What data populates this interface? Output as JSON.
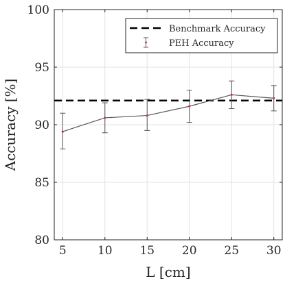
{
  "chart_data": {
    "type": "line",
    "title": "",
    "xlabel": "L [cm]",
    "ylabel": "Accuracy [%]",
    "xlim": [
      4,
      31
    ],
    "ylim": [
      80,
      100
    ],
    "xticks": [
      5,
      10,
      15,
      20,
      25,
      30
    ],
    "yticks": [
      80,
      85,
      90,
      95,
      100
    ],
    "grid": true,
    "legend_position": "top-right",
    "series": [
      {
        "name": "Benchmark Accuracy",
        "style": "dashed",
        "color": "#000000",
        "x": [
          4,
          31
        ],
        "y": [
          92.1,
          92.1
        ]
      },
      {
        "name": "PEH Accuracy",
        "style": "solid-errorbar",
        "color": "#555555",
        "marker_color": "#c0394b",
        "x": [
          5,
          10,
          15,
          20,
          25,
          30
        ],
        "y": [
          89.4,
          90.6,
          90.8,
          91.6,
          92.6,
          92.3
        ],
        "err_low": [
          1.5,
          1.3,
          1.3,
          1.4,
          1.2,
          1.1
        ],
        "err_high": [
          1.6,
          1.3,
          1.4,
          1.4,
          1.2,
          1.1
        ]
      }
    ]
  }
}
